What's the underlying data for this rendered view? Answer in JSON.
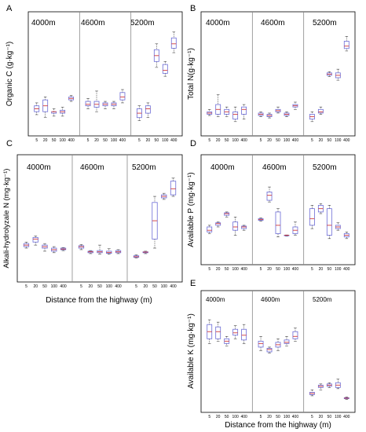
{
  "figure": {
    "xlabel_bottom_left": "Distance from the highway (m)",
    "xlabel_bottom_right": "Distance from the highway (m)"
  },
  "colors": {
    "box": "#6b6bd6",
    "median": "#d23b3b",
    "whisker": "#444444",
    "divider": "#888888",
    "frame": "#000000"
  },
  "chart_data": [
    {
      "panel": "A",
      "type": "boxplot",
      "ylabel": "Organic C (g·kg⁻¹)",
      "ylim": [
        0,
        33
      ],
      "yticks": [
        0,
        5,
        10,
        15,
        20,
        25,
        30
      ],
      "groups": [
        "4000m",
        "4600m",
        "5200m"
      ],
      "categories": [
        "5",
        "20",
        "50",
        "100",
        "400"
      ],
      "boxes": [
        [
          [
            4,
            5,
            6,
            7,
            8
          ],
          [
            3,
            5,
            7,
            9,
            10
          ],
          [
            3.5,
            4.5,
            5,
            5,
            6
          ],
          [
            3.5,
            4.5,
            5,
            5.5,
            6.5
          ],
          [
            8.5,
            9,
            9.5,
            10,
            10.5
          ]
        ],
        [
          [
            6,
            7,
            7.5,
            8.5,
            9.5
          ],
          [
            5,
            6.5,
            7.5,
            8.5,
            12
          ],
          [
            6,
            7,
            7.5,
            8,
            8.5
          ],
          [
            6,
            7,
            7.5,
            8,
            8.5
          ],
          [
            8,
            9,
            10,
            11.5,
            12.5
          ]
        ],
        [
          [
            2,
            3,
            4.5,
            6,
            7
          ],
          [
            3,
            4.5,
            6,
            7,
            8
          ],
          [
            20,
            22,
            24,
            26,
            28
          ],
          [
            17,
            18,
            19,
            21,
            22
          ],
          [
            25,
            26.5,
            28,
            30,
            32
          ]
        ]
      ]
    },
    {
      "panel": "B",
      "type": "boxplot",
      "ylabel": "Total N(g·kg⁻¹)",
      "ylim": [
        0,
        4
      ],
      "yticks": [
        0,
        0.5,
        1,
        1.5,
        2,
        2.5,
        3,
        3.5
      ],
      "groups": [
        "4000m",
        "4600m",
        "5200m"
      ],
      "categories": [
        "5",
        "20",
        "50",
        "100",
        "400"
      ],
      "boxes": [
        [
          [
            0.45,
            0.5,
            0.55,
            0.6,
            0.7
          ],
          [
            0.4,
            0.5,
            0.7,
            0.9,
            1.3
          ],
          [
            0.4,
            0.5,
            0.6,
            0.7,
            0.8
          ],
          [
            0.2,
            0.3,
            0.5,
            0.6,
            0.8
          ],
          [
            0.3,
            0.5,
            0.7,
            0.8,
            0.9
          ]
        ],
        [
          [
            0.4,
            0.45,
            0.5,
            0.55,
            0.6
          ],
          [
            0.35,
            0.4,
            0.45,
            0.5,
            0.55
          ],
          [
            0.55,
            0.6,
            0.65,
            0.7,
            0.8
          ],
          [
            0.4,
            0.45,
            0.5,
            0.55,
            0.6
          ],
          [
            0.7,
            0.8,
            0.85,
            0.9,
            1.0
          ]
        ],
        [
          [
            0.2,
            0.3,
            0.4,
            0.5,
            0.6
          ],
          [
            0.5,
            0.55,
            0.6,
            0.7,
            0.8
          ],
          [
            2.05,
            2.1,
            2.15,
            2.2,
            2.25
          ],
          [
            1.9,
            2.0,
            2.1,
            2.2,
            2.35
          ],
          [
            3.1,
            3.2,
            3.3,
            3.5,
            3.7
          ]
        ]
      ]
    },
    {
      "panel": "C",
      "type": "boxplot",
      "ylabel": "Alkali-hydrolyzale N (mg·kg⁻¹)",
      "ylim": [
        0,
        330
      ],
      "yticks": [
        0,
        50,
        100,
        150,
        200,
        250,
        300
      ],
      "groups": [
        "4000m",
        "4600m",
        "5200m"
      ],
      "categories": [
        "5",
        "20",
        "50",
        "100",
        "400"
      ],
      "boxes": [
        [
          [
            80,
            85,
            90,
            95,
            100
          ],
          [
            90,
            100,
            110,
            115,
            120
          ],
          [
            70,
            80,
            85,
            90,
            95
          ],
          [
            65,
            70,
            75,
            80,
            85
          ],
          [
            72,
            75,
            77,
            80,
            82
          ]
        ],
        [
          [
            75,
            80,
            85,
            88,
            92
          ],
          [
            62,
            65,
            68,
            70,
            72
          ],
          [
            60,
            65,
            68,
            72,
            90
          ],
          [
            60,
            63,
            66,
            70,
            78
          ],
          [
            62,
            65,
            68,
            72,
            75
          ]
        ],
        [
          [
            48,
            50,
            52,
            55,
            58
          ],
          [
            62,
            65,
            67,
            68,
            70
          ],
          [
            80,
            110,
            170,
            230,
            250
          ],
          [
            240,
            245,
            250,
            255,
            260
          ],
          [
            250,
            255,
            275,
            300,
            310
          ]
        ]
      ]
    },
    {
      "panel": "D",
      "type": "boxplot",
      "ylabel": "Available P (mg·kg⁻¹)",
      "ylim": [
        0,
        5
      ],
      "yticks": [
        0,
        1,
        2,
        3,
        4
      ],
      "groups": [
        "4000m",
        "4600m",
        "5200m"
      ],
      "categories": [
        "5",
        "20",
        "50",
        "100",
        "400"
      ],
      "boxes": [
        [
          [
            1.3,
            1.4,
            1.5,
            1.7,
            1.8
          ],
          [
            1.7,
            1.8,
            1.9,
            1.95,
            2.0
          ],
          [
            2.3,
            2.4,
            2.5,
            2.55,
            2.6
          ],
          [
            1.2,
            1.5,
            1.7,
            2.0,
            2.3
          ],
          [
            1.5,
            1.6,
            1.7,
            1.75,
            1.8
          ]
        ],
        [
          [
            2.05,
            2.1,
            2.15,
            2.2,
            2.25
          ],
          [
            3.2,
            3.3,
            3.6,
            3.8,
            4.1
          ],
          [
            1.1,
            1.3,
            1.8,
            2.6,
            2.8
          ],
          [
            1.15,
            1.18,
            1.2,
            1.21,
            1.22
          ],
          [
            1.2,
            1.3,
            1.5,
            1.7,
            2.0
          ]
        ],
        [
          [
            1.6,
            1.8,
            2.2,
            2.8,
            3.0
          ],
          [
            2.5,
            2.6,
            2.8,
            3.0,
            3.1
          ],
          [
            1.0,
            1.2,
            1.8,
            2.8,
            3.0
          ],
          [
            1.5,
            1.6,
            1.7,
            1.8,
            1.95
          ],
          [
            1.0,
            1.1,
            1.2,
            1.3,
            1.4
          ]
        ]
      ]
    },
    {
      "panel": "E",
      "type": "boxplot",
      "ylabel": "Available K (mg·kg⁻¹)",
      "ylim": [
        0,
        400
      ],
      "yticks": [
        0,
        50,
        100,
        150,
        200,
        250,
        300,
        350
      ],
      "groups": [
        "4000m",
        "4600m",
        "5200m"
      ],
      "categories": [
        "5",
        "20",
        "50",
        "100",
        "400"
      ],
      "boxes": [
        [
          [
            250,
            270,
            300,
            330,
            350
          ],
          [
            260,
            270,
            300,
            320,
            340
          ],
          [
            240,
            250,
            260,
            270,
            280
          ],
          [
            270,
            285,
            295,
            310,
            325
          ],
          [
            250,
            265,
            285,
            310,
            330
          ]
        ],
        [
          [
            220,
            235,
            250,
            260,
            280
          ],
          [
            210,
            215,
            225,
            230,
            235
          ],
          [
            220,
            235,
            245,
            255,
            270
          ],
          [
            240,
            250,
            255,
            265,
            280
          ],
          [
            260,
            270,
            280,
            300,
            315
          ]
        ],
        [
          [
            30,
            35,
            40,
            45,
            55
          ],
          [
            55,
            65,
            70,
            75,
            80
          ],
          [
            65,
            70,
            75,
            80,
            85
          ],
          [
            60,
            65,
            75,
            85,
            100
          ],
          [
            15,
            18,
            20,
            22,
            25
          ]
        ]
      ]
    }
  ],
  "panels": [
    {
      "letter": "A",
      "ylabel": "Organic C (g·kg⁻¹)",
      "groups": [
        "4000m",
        "4600m",
        "5200m"
      ],
      "ticks": [
        "5",
        "20",
        "50",
        "100",
        "400",
        "5",
        "20",
        "50",
        "100",
        "400",
        "5",
        "20",
        "50",
        "100",
        "400"
      ]
    },
    {
      "letter": "B",
      "ylabel": "Total N(g·kg⁻¹)",
      "groups": [
        "4000m",
        "4600m",
        "5200m"
      ],
      "ticks": [
        "5",
        "20",
        "50",
        "100",
        "400",
        "5",
        "20",
        "50",
        "100",
        "400",
        "5",
        "20",
        "50",
        "100",
        "400"
      ]
    },
    {
      "letter": "C",
      "ylabel": "Alkali-hydrolyzale N (mg·kg⁻¹)",
      "groups": [
        "4000m",
        "4600m",
        "5200m"
      ],
      "ticks": [
        "5",
        "20",
        "50",
        "100",
        "400",
        "5",
        "20",
        "50",
        "100",
        "400",
        "5",
        "20",
        "50",
        "100",
        "400"
      ]
    },
    {
      "letter": "D",
      "ylabel": "Available P (mg·kg⁻¹)",
      "groups": [
        "4000m",
        "4600m",
        "5200m"
      ],
      "ticks": [
        "5",
        "20",
        "50",
        "100",
        "400",
        "5",
        "20",
        "50",
        "100",
        "400",
        "5",
        "20",
        "50",
        "100",
        "400"
      ]
    },
    {
      "letter": "E",
      "ylabel": "Available K (mg·kg⁻¹)",
      "groups": [
        "4000m",
        "4600m",
        "5200m"
      ],
      "ticks": [
        "5",
        "20",
        "50",
        "100",
        "400",
        "5",
        "20",
        "50",
        "100",
        "400",
        "5",
        "20",
        "50",
        "100",
        "400"
      ]
    }
  ]
}
